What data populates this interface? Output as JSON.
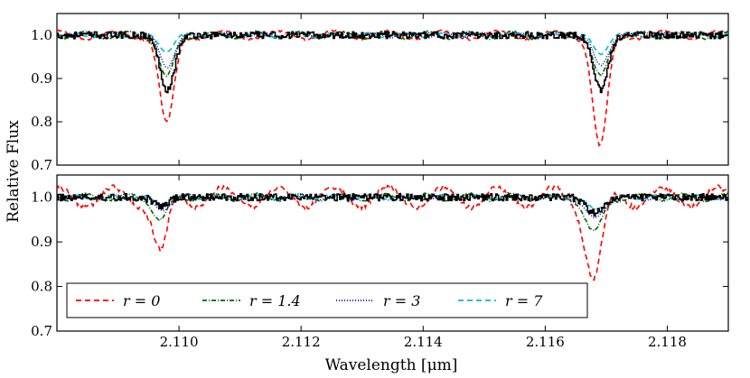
{
  "chart_data": {
    "type": "line",
    "ylabel": "Relative Flux",
    "xlabel": "Wavelength [μm]",
    "xlim": [
      2.108,
      2.119
    ],
    "x_ticks": [
      2.11,
      2.112,
      2.114,
      2.116,
      2.118
    ],
    "x_tick_labels": [
      "2.110",
      "2.112",
      "2.114",
      "2.116",
      "2.118"
    ],
    "series_style": [
      {
        "key": "r0",
        "color": "#ff0000",
        "dash": "6,4"
      },
      {
        "key": "r1_4",
        "color": "#006400",
        "dash": "5,2,1,2"
      },
      {
        "key": "r3",
        "color": "#0000cc",
        "dash": "1,2"
      },
      {
        "key": "r7",
        "color": "#00bfbf",
        "dash": "6,4"
      },
      {
        "key": "observed",
        "color": "#000000",
        "dash": ""
      }
    ],
    "legend": {
      "placement": "bottom-left of lower panel",
      "entries": [
        {
          "label": "r = 0",
          "color": "#ff0000",
          "dash": "6,4"
        },
        {
          "label": "r = 1.4",
          "color": "#006400",
          "dash": "5,2,1,2"
        },
        {
          "label": "r = 3",
          "color": "#0000cc",
          "dash": "1,2"
        },
        {
          "label": "r = 7",
          "color": "#00bfbf",
          "dash": "6,4"
        }
      ]
    },
    "panels": [
      {
        "name": "top",
        "ylim": [
          0.7,
          1.05
        ],
        "y_ticks": [
          0.7,
          0.8,
          0.9,
          1.0
        ],
        "y_tick_labels": [
          "0.7",
          "0.8",
          "0.9",
          "1.0"
        ],
        "lines": [
          {
            "center": 2.1098,
            "width": 0.00012,
            "depth": {
              "observed": 0.125,
              "r0": 0.21,
              "r1_4": 0.1,
              "r3": 0.07,
              "r7": 0.035
            }
          },
          {
            "center": 2.1169,
            "width": 0.00012,
            "depth": {
              "observed": 0.125,
              "r0": 0.26,
              "r1_4": 0.1,
              "r3": 0.07,
              "r7": 0.04
            }
          }
        ]
      },
      {
        "name": "bottom",
        "ylim": [
          0.7,
          1.05
        ],
        "y_ticks": [
          0.7,
          0.8,
          0.9,
          1.0
        ],
        "y_tick_labels": [
          "0.7",
          "0.8",
          "0.9",
          "1.0"
        ],
        "lines": [
          {
            "center": 2.1097,
            "width": 0.00012,
            "depth": {
              "observed": 0.02,
              "r0": 0.13,
              "r1_4": 0.05,
              "r3": 0.03,
              "r7": 0.015
            }
          },
          {
            "center": 2.1168,
            "width": 0.00014,
            "depth": {
              "observed": 0.035,
              "r0": 0.18,
              "r1_4": 0.08,
              "r3": 0.05,
              "r7": 0.025
            }
          }
        ]
      }
    ]
  }
}
